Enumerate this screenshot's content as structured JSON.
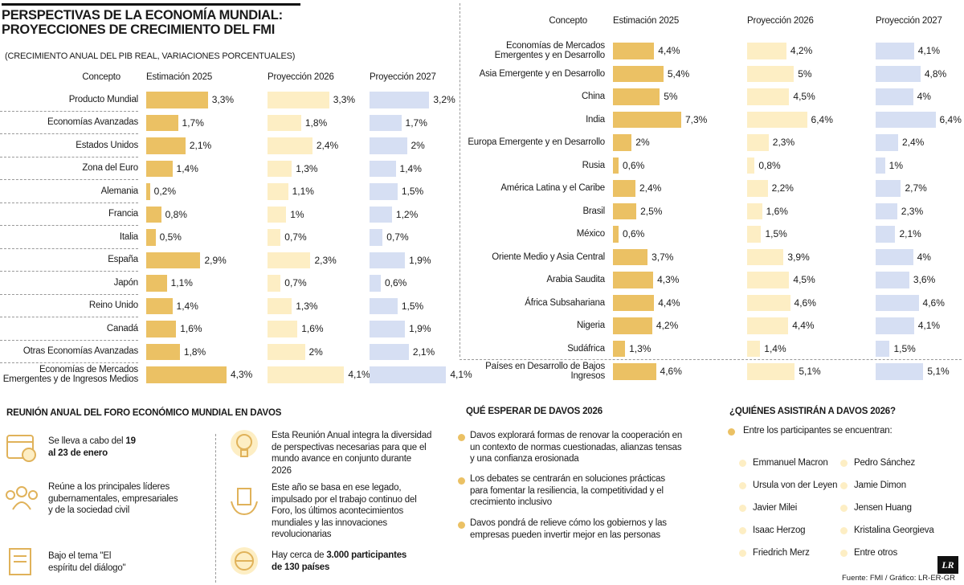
{
  "chart_data": [
    {
      "type": "bar",
      "title": "PERSPECTIVAS DE LA ECONOMÍA MUNDIAL: PROYECCIONES DE CRECIMIENTO DEL FMI",
      "subtitle": "(CRECIMIENTO ANUAL DEL PIB REAL, VARIACIONES PORCENTUALES)",
      "category_label": "Concepto",
      "categories": [
        "Producto Mundial",
        "Economías Avanzadas",
        "Estados Unidos",
        "Zona del Euro",
        "Alemania",
        "Francia",
        "Italia",
        "España",
        "Japón",
        "Reino Unido",
        "Canadá",
        "Otras Economías Avanzadas",
        "Economías de Mercados Emergentes y de Ingresos Medios"
      ],
      "series": [
        {
          "name": "Estimación 2025",
          "color": "#ebc164",
          "values": [
            3.3,
            1.7,
            2.1,
            1.4,
            0.2,
            0.8,
            0.5,
            2.9,
            1.1,
            1.4,
            1.6,
            1.8,
            4.3
          ],
          "value_labels": [
            "3,3%",
            "1,7%",
            "2,1%",
            "1,4%",
            "0,2%",
            "0,8%",
            "0,5%",
            "2,9%",
            "1,1%",
            "1,4%",
            "1,6%",
            "1,8%",
            "4,3%"
          ]
        },
        {
          "name": "Proyección 2026",
          "color": "#fdeec4",
          "values": [
            3.3,
            1.8,
            2.4,
            1.3,
            1.1,
            1,
            0.7,
            2.3,
            0.7,
            1.3,
            1.6,
            2,
            4.1
          ],
          "value_labels": [
            "3,3%",
            "1,8%",
            "2,4%",
            "1,3%",
            "1,1%",
            "1%",
            "0,7%",
            "2,3%",
            "0,7%",
            "1,3%",
            "1,6%",
            "2%",
            "4,1%"
          ]
        },
        {
          "name": "Proyección 2027",
          "color": "#d6dff3",
          "values": [
            3.2,
            1.7,
            2,
            1.4,
            1.5,
            1.2,
            0.7,
            1.9,
            0.6,
            1.5,
            1.9,
            2.1,
            4.1
          ],
          "value_labels": [
            "3,2%",
            "1,7%",
            "2%",
            "1,4%",
            "1,5%",
            "1,2%",
            "0,7%",
            "1,9%",
            "0,6%",
            "1,5%",
            "1,9%",
            "2,1%",
            "4,1%"
          ]
        }
      ]
    },
    {
      "type": "bar",
      "category_label": "Concepto",
      "categories": [
        "Economías de Mercados Emergentes y en Desarrollo",
        "Asia Emergente y en Desarrollo",
        "China",
        "India",
        "Europa Emergente y en Desarrollo",
        "Rusia",
        "América Latina y el Caribe",
        "Brasil",
        "México",
        "Oriente Medio y Asia Central",
        "Arabia Saudita",
        "África Subsahariana",
        "Nigeria",
        "Sudáfrica",
        "Países en Desarrollo de Bajos Ingresos"
      ],
      "series": [
        {
          "name": "Estimación 2025",
          "color": "#ebc164",
          "values": [
            4.4,
            5.4,
            5,
            7.3,
            2,
            0.6,
            2.4,
            2.5,
            0.6,
            3.7,
            4.3,
            4.4,
            4.2,
            1.3,
            4.6
          ],
          "value_labels": [
            "4,4%",
            "5,4%",
            "5%",
            "7,3%",
            "2%",
            "0,6%",
            "2,4%",
            "2,5%",
            "0,6%",
            "3,7%",
            "4,3%",
            "4,4%",
            "4,2%",
            "1,3%",
            "4,6%"
          ]
        },
        {
          "name": "Proyección 2026",
          "color": "#fdeec4",
          "values": [
            4.2,
            5,
            4.5,
            6.4,
            2.3,
            0.8,
            2.2,
            1.6,
            1.5,
            3.9,
            4.5,
            4.6,
            4.4,
            1.4,
            5.1
          ],
          "value_labels": [
            "4,2%",
            "5%",
            "4,5%",
            "6,4%",
            "2,3%",
            "0,8%",
            "2,2%",
            "1,6%",
            "1,5%",
            "3,9%",
            "4,5%",
            "4,6%",
            "4,4%",
            "1,4%",
            "5,1%"
          ]
        },
        {
          "name": "Proyección 2027",
          "color": "#d6dff3",
          "values": [
            4.1,
            4.8,
            4,
            6.4,
            2.4,
            1,
            2.7,
            2.3,
            2.1,
            4,
            3.6,
            4.6,
            4.1,
            1.5,
            5.1
          ],
          "value_labels": [
            "4,1%",
            "4,8%",
            "4%",
            "6,4%",
            "2,4%",
            "1%",
            "2,7%",
            "2,3%",
            "2,1%",
            "4%",
            "3,6%",
            "4,6%",
            "4,1%",
            "1,5%",
            "5,1%"
          ]
        }
      ]
    }
  ],
  "meeting": {
    "title": "REUNIÓN ANUAL DEL FORO ECONÓMICO MUNDIAL EN DAVOS",
    "items": [
      {
        "text": "Se lleva a cabo del ",
        "strong": "19 al 23 de enero"
      },
      {
        "text": "Reúne a los principales líderes gubernamentales, empresariales y de la sociedad civil"
      },
      {
        "text": "Bajo el tema \"El espíritu del diálogo\""
      },
      {
        "text": "Esta Reunión Anual integra la diversidad de perspectivas necesarias para que el mundo avance en conjunto durante 2026"
      },
      {
        "text": "Este año se basa en ese legado, impulsado por el trabajo continuo del Foro, los últimos acontecimientos mundiales y las innovaciones revolucionarias"
      },
      {
        "text": "Hay cerca de ",
        "strong": "3.000 participantes de 130 países"
      }
    ]
  },
  "expect": {
    "title": "QUÉ ESPERAR DE DAVOS 2026",
    "items": [
      "Davos explorará formas de renovar la cooperación en un contexto de normas cuestionadas, alianzas tensas y una confianza erosionada",
      "Los debates se centrarán en soluciones prácticas para fomentar la resiliencia, la competitividad y el crecimiento inclusivo",
      "Davos pondrá de relieve cómo los gobiernos y las empresas pueden invertir mejor en las personas"
    ]
  },
  "attendees": {
    "title": "¿QUIÉNES ASISTIRÁN A DAVOS 2026?",
    "intro": "Entre los participantes se encuentran:",
    "names": [
      "Emmanuel Macron",
      "Ursula von der Leyen",
      "Javier Milei",
      "Isaac Herzog",
      "Friedrich Merz",
      "Pedro Sánchez",
      "Jamie Dimon",
      "Jensen Huang",
      "Kristalina Georgieva",
      "Entre otros"
    ]
  },
  "source": "Fuente: FMI / Gráfico: LR-ER-GR",
  "logo": "LR"
}
